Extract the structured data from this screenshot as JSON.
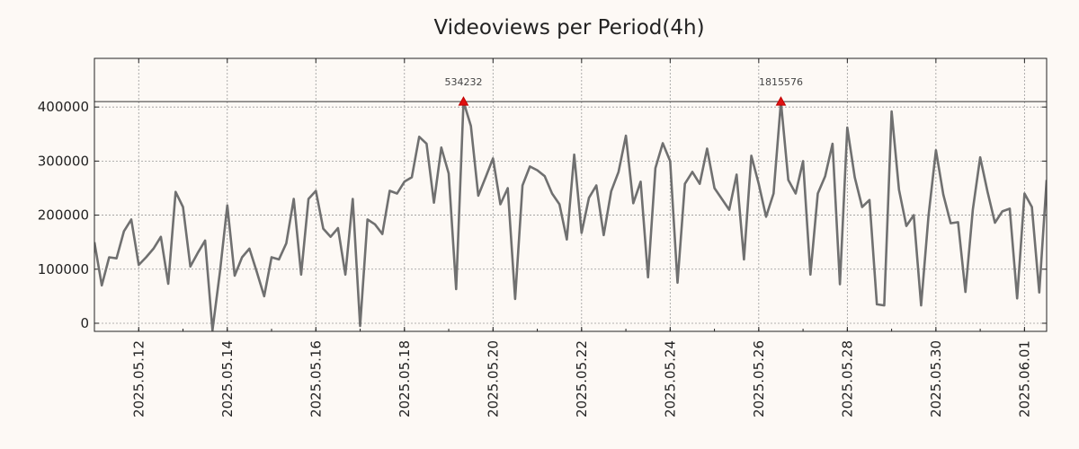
{
  "chart_data": {
    "type": "line",
    "title": "Videoviews per Period(4h)",
    "xlabel": "",
    "ylabel": "",
    "grid": true,
    "ylim": [
      -15000,
      490000
    ],
    "xlim": [
      0,
      129
    ],
    "x_ticks": [
      {
        "label": "2025.05.12",
        "index": 6
      },
      {
        "label": "2025.05.14",
        "index": 18
      },
      {
        "label": "2025.05.16",
        "index": 30
      },
      {
        "label": "2025.05.18",
        "index": 42
      },
      {
        "label": "2025.05.20",
        "index": 54
      },
      {
        "label": "2025.05.22",
        "index": 66
      },
      {
        "label": "2025.05.24",
        "index": 78
      },
      {
        "label": "2025.05.26",
        "index": 90
      },
      {
        "label": "2025.05.28",
        "index": 102
      },
      {
        "label": "2025.05.30",
        "index": 114
      },
      {
        "label": "2025.06.01",
        "index": 126
      }
    ],
    "y_ticks": [
      0,
      100000,
      200000,
      300000,
      400000
    ],
    "y_tick_labels": [
      "0",
      "100000",
      "200000",
      "300000",
      "400000"
    ],
    "reference_line": 410000,
    "peaks": [
      {
        "index": 50,
        "label": "534232"
      },
      {
        "index": 93,
        "label": "1815576"
      }
    ],
    "series": [
      {
        "name": "Videoviews",
        "color": "#707070",
        "values": [
          150000,
          70000,
          122000,
          120000,
          170000,
          192000,
          108000,
          122000,
          138000,
          160000,
          73000,
          243000,
          215000,
          105000,
          130000,
          153000,
          -13000,
          95000,
          218000,
          88000,
          122000,
          138000,
          95000,
          50000,
          122000,
          118000,
          148000,
          230000,
          90000,
          230000,
          245000,
          175000,
          160000,
          176000,
          90000,
          230000,
          -5000,
          192000,
          183000,
          165000,
          245000,
          240000,
          262000,
          270000,
          345000,
          332000,
          223000,
          325000,
          277000,
          63000,
          410000,
          365000,
          236000,
          270000,
          305000,
          220000,
          250000,
          45000,
          255000,
          290000,
          283000,
          272000,
          240000,
          220000,
          155000,
          312000,
          167000,
          232000,
          255000,
          163000,
          244000,
          280000,
          347000,
          222000,
          262000,
          85000,
          287000,
          333000,
          300000,
          75000,
          258000,
          280000,
          258000,
          323000,
          250000,
          230000,
          210000,
          275000,
          118000,
          310000,
          258000,
          197000,
          240000,
          410000,
          265000,
          240000,
          300000,
          90000,
          240000,
          272000,
          332000,
          72000,
          362000,
          270000,
          215000,
          228000,
          35000,
          33000,
          392000,
          247000,
          180000,
          200000,
          33000,
          200000,
          320000,
          238000,
          185000,
          187000,
          58000,
          210000,
          307000,
          243000,
          186000,
          207000,
          212000,
          46000,
          240000,
          215000,
          57000,
          265000
        ]
      }
    ]
  }
}
